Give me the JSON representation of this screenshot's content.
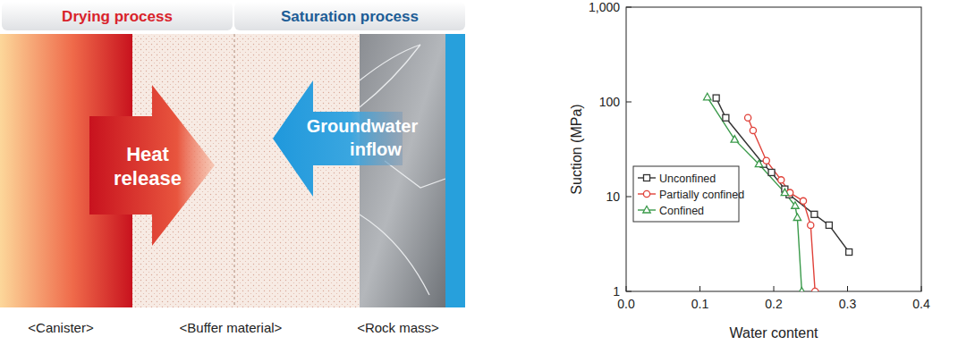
{
  "chart_data": {
    "type": "line",
    "x_label": "Water content",
    "y_label": "Suction (MPa)",
    "log": "y",
    "grid": false,
    "legend": "left",
    "xlim": [
      0,
      0.4
    ],
    "xticks": [
      {
        "value": 0,
        "label": "0.0"
      },
      0.1,
      0.2,
      0.3,
      0.4
    ],
    "ylim": [
      1,
      1000
    ],
    "yticks": [
      1,
      10,
      100,
      {
        "value": 1000,
        "label": "1,000"
      }
    ],
    "series": [
      {
        "name": "Unconfined",
        "color": "#333333",
        "marker": "square",
        "x": [
          0.122,
          0.135,
          0.186,
          0.197,
          0.215,
          0.221,
          0.255,
          0.275,
          0.302
        ],
        "values": [
          110,
          68,
          22,
          18,
          12,
          10.5,
          6.5,
          5,
          2.6
        ]
      },
      {
        "name": "Partially confined",
        "color": "#e0423a",
        "marker": "circle",
        "x": [
          0.165,
          0.172,
          0.19,
          0.21,
          0.222,
          0.24,
          0.25,
          0.256
        ],
        "values": [
          68,
          50,
          24,
          15,
          11,
          9,
          5,
          1
        ]
      },
      {
        "name": "Confined",
        "color": "#3a9a4a",
        "marker": "triangle",
        "x": [
          0.11,
          0.147,
          0.18,
          0.215,
          0.229,
          0.232,
          0.238
        ],
        "values": [
          112,
          40,
          22,
          11,
          8,
          6,
          1
        ]
      }
    ]
  },
  "diagram": {
    "headers": [
      "Drying process",
      "Saturation process"
    ],
    "heat_arrow": [
      "Heat",
      "release"
    ],
    "water_arrow": [
      "Groundwater",
      "inflow"
    ],
    "labels": [
      "<Canister>",
      "<Buffer material>",
      "<Rock mass>"
    ]
  }
}
